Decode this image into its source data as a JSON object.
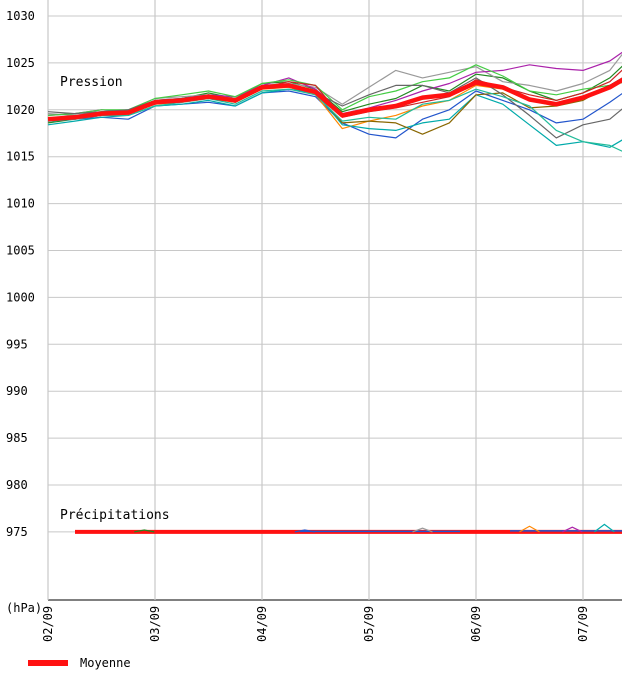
{
  "chart_data": {
    "type": "line",
    "labels": {
      "pressure": "Pression",
      "precip": "Précipitations",
      "unit": "(hPa)"
    },
    "y_ticks": [
      1030,
      1025,
      1020,
      1015,
      1010,
      1005,
      1000,
      995,
      990,
      985,
      980,
      975
    ],
    "ylim": [
      970,
      1031
    ],
    "x_ticks": [
      {
        "label": "02/09",
        "day": 0
      },
      {
        "label": "03/09",
        "day": 1
      },
      {
        "label": "04/09",
        "day": 2
      },
      {
        "label": "05/09",
        "day": 3
      },
      {
        "label": "06/09",
        "day": 4
      },
      {
        "label": "07/09",
        "day": 5
      }
    ],
    "xlim": [
      0,
      5.4
    ],
    "grid": true,
    "legend_position": "bottom-left",
    "colors": {
      "mean": "#ff1111",
      "grid": "#c8c8c8",
      "members": [
        "#228822",
        "#2255cc",
        "#999999",
        "#ff8800",
        "#aa22aa",
        "#00aaaa",
        "#886600",
        "#44cc44",
        "#666666",
        "#cc2222",
        "#22bb99",
        "#000000"
      ]
    },
    "series": [
      {
        "name": "Moyenne",
        "x": [
          0,
          0.25,
          0.5,
          0.75,
          1.0,
          1.25,
          1.5,
          1.75,
          2.0,
          2.25,
          2.5,
          2.75,
          3.0,
          3.25,
          3.5,
          3.75,
          4.0,
          4.25,
          4.5,
          4.75,
          5.0,
          5.25,
          5.4
        ],
        "y": [
          1019.0,
          1019.2,
          1019.6,
          1019.7,
          1020.8,
          1021.0,
          1021.4,
          1021.0,
          1022.4,
          1022.6,
          1021.9,
          1019.4,
          1020.0,
          1020.4,
          1021.3,
          1021.6,
          1022.9,
          1022.4,
          1021.1,
          1020.6,
          1021.3,
          1022.4,
          1023.4
        ]
      }
    ],
    "members": [
      {
        "y": [
          1018.6,
          1019.0,
          1019.4,
          1019.6,
          1020.8,
          1021.2,
          1021.8,
          1021.2,
          1022.8,
          1023.0,
          1022.2,
          1019.8,
          1020.6,
          1021.2,
          1022.6,
          1022.0,
          1023.8,
          1023.4,
          1022.0,
          1021.0,
          1021.8,
          1023.4,
          1025.0
        ]
      },
      {
        "y": [
          1018.8,
          1019.0,
          1019.2,
          1019.0,
          1020.4,
          1020.6,
          1020.8,
          1020.4,
          1021.8,
          1022.0,
          1021.4,
          1018.6,
          1017.4,
          1017.0,
          1019.0,
          1020.0,
          1022.0,
          1021.0,
          1020.0,
          1018.6,
          1019.0,
          1020.8,
          1022.0
        ]
      },
      {
        "y": [
          1019.6,
          1019.4,
          1019.8,
          1020.0,
          1021.2,
          1021.4,
          1021.6,
          1021.2,
          1022.6,
          1022.8,
          1022.4,
          1020.6,
          1022.4,
          1024.2,
          1023.4,
          1024.0,
          1024.6,
          1023.0,
          1022.6,
          1022.0,
          1022.8,
          1024.2,
          1026.4
        ]
      },
      {
        "y": [
          1019.2,
          1019.0,
          1019.4,
          1019.6,
          1020.6,
          1020.8,
          1021.2,
          1020.8,
          1022.2,
          1022.4,
          1021.6,
          1018.0,
          1018.8,
          1019.4,
          1020.4,
          1021.0,
          1022.6,
          1022.2,
          1021.0,
          1020.4,
          1021.2,
          1022.4,
          1023.6
        ]
      },
      {
        "y": [
          1019.4,
          1019.6,
          1020.0,
          1019.8,
          1021.0,
          1021.2,
          1021.6,
          1021.4,
          1022.6,
          1023.4,
          1022.2,
          1019.6,
          1020.2,
          1021.0,
          1022.0,
          1022.8,
          1024.0,
          1024.2,
          1024.8,
          1024.4,
          1024.2,
          1025.2,
          1026.4
        ]
      },
      {
        "y": [
          1018.4,
          1018.8,
          1019.2,
          1019.4,
          1020.4,
          1020.6,
          1021.0,
          1020.4,
          1021.8,
          1022.2,
          1021.8,
          1018.4,
          1018.0,
          1017.8,
          1018.6,
          1019.0,
          1021.6,
          1020.6,
          1018.4,
          1016.2,
          1016.6,
          1016.0,
          1017.0
        ]
      },
      {
        "y": [
          1019.0,
          1019.2,
          1019.4,
          1019.8,
          1020.8,
          1021.0,
          1021.6,
          1021.0,
          1022.4,
          1022.6,
          1021.8,
          1018.6,
          1018.8,
          1018.6,
          1017.4,
          1018.6,
          1021.6,
          1021.8,
          1020.2,
          1020.4,
          1021.0,
          1022.6,
          1023.4
        ]
      },
      {
        "y": [
          1019.4,
          1019.6,
          1020.0,
          1020.0,
          1021.2,
          1021.6,
          1022.0,
          1021.4,
          1022.8,
          1023.2,
          1022.6,
          1020.0,
          1021.4,
          1022.0,
          1023.0,
          1023.4,
          1024.8,
          1023.6,
          1022.0,
          1021.6,
          1022.2,
          1022.6,
          1023.0
        ]
      },
      {
        "y": [
          1019.8,
          1019.6,
          1019.8,
          1020.0,
          1021.0,
          1021.2,
          1021.4,
          1021.0,
          1022.4,
          1022.6,
          1021.8,
          1020.4,
          1021.6,
          1022.6,
          1022.6,
          1021.8,
          1023.4,
          1021.6,
          1019.4,
          1017.0,
          1018.4,
          1019.0,
          1020.4
        ]
      },
      {
        "y": [
          1019.0,
          1019.2,
          1019.6,
          1019.6,
          1020.6,
          1021.0,
          1021.4,
          1020.8,
          1022.4,
          1023.0,
          1022.6,
          1019.2,
          1019.8,
          1020.2,
          1020.8,
          1021.4,
          1023.2,
          1022.4,
          1021.6,
          1021.0,
          1021.8,
          1023.0,
          1024.6
        ]
      },
      {
        "y": [
          1018.8,
          1019.0,
          1019.4,
          1019.4,
          1020.4,
          1020.8,
          1021.2,
          1020.6,
          1022.0,
          1022.2,
          1021.6,
          1018.8,
          1019.2,
          1019.0,
          1020.6,
          1021.0,
          1022.2,
          1021.4,
          1020.4,
          1017.8,
          1016.6,
          1016.2,
          1015.4
        ]
      },
      {
        "y": [
          1019.0,
          1019.2,
          1019.6,
          1019.6,
          1020.8,
          1021.0,
          1021.4,
          1021.0,
          1022.4,
          1022.6,
          1022.0,
          1019.4,
          1020.0,
          1020.4,
          1021.4,
          1021.6,
          1022.8,
          1022.4,
          1021.0,
          1020.6,
          1021.4,
          1022.6,
          1023.6
        ]
      }
    ],
    "precip": {
      "baseline": 975,
      "bumps": [
        {
          "x": 0.9,
          "y": 975.2
        },
        {
          "x": 2.4,
          "y": 975.2
        },
        {
          "x": 3.5,
          "y": 975.4
        },
        {
          "x": 4.5,
          "y": 975.6
        },
        {
          "x": 4.9,
          "y": 975.5
        },
        {
          "x": 5.2,
          "y": 975.8
        }
      ]
    }
  },
  "legend": {
    "label": "Moyenne"
  }
}
